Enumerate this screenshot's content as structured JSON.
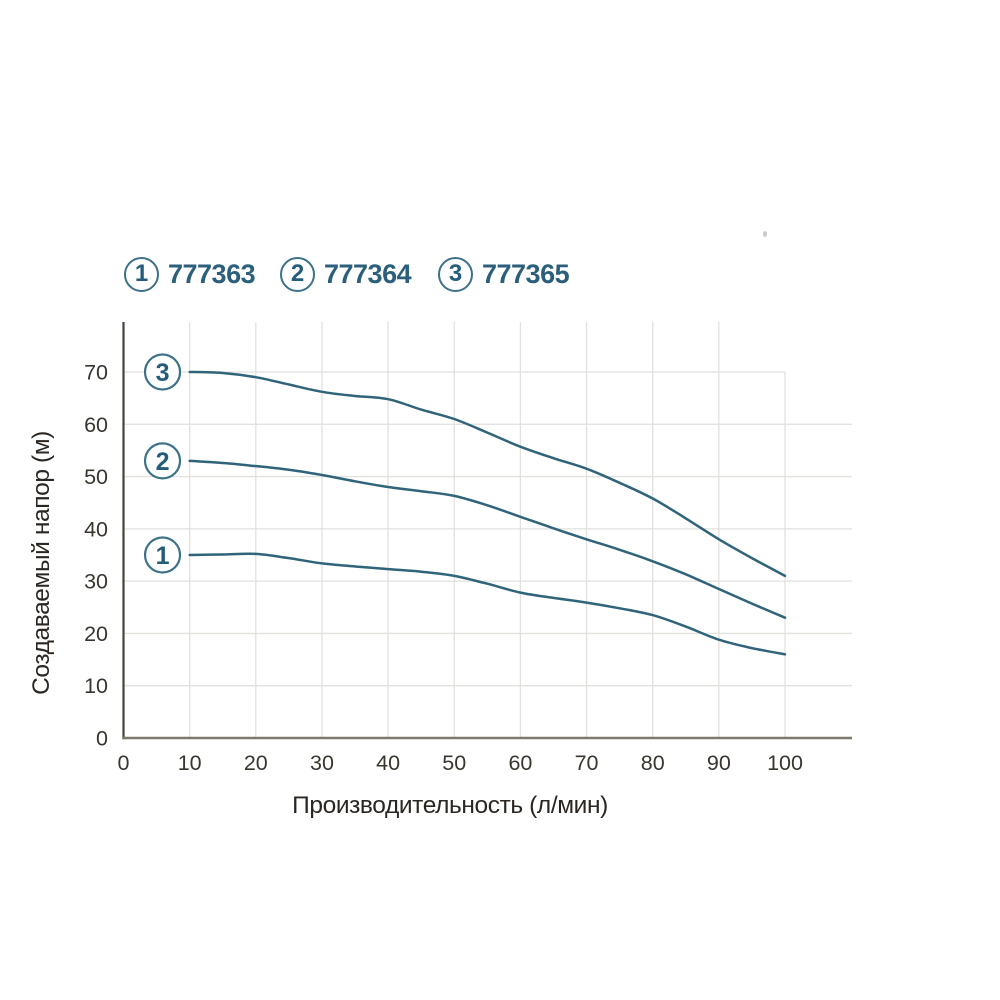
{
  "page": {
    "background": "#ffffff"
  },
  "legend": {
    "items": [
      {
        "marker": "1",
        "code": "777363"
      },
      {
        "marker": "2",
        "code": "777364"
      },
      {
        "marker": "3",
        "code": "777365"
      }
    ]
  },
  "chart_data": {
    "type": "line",
    "title": "",
    "xlabel": "Производительность (л/мин)",
    "ylabel": "Создаваемый напор (м)",
    "xlim": [
      0,
      110
    ],
    "ylim": [
      0,
      80
    ],
    "grid": true,
    "legend_position": "above-top-left",
    "x_ticks": [
      0,
      10,
      20,
      30,
      40,
      50,
      60,
      70,
      80,
      90,
      100
    ],
    "y_ticks": [
      0,
      10,
      20,
      30,
      40,
      50,
      60,
      70
    ],
    "colors": {
      "curve": "#30647a",
      "marker_ring": "#3c7189",
      "marker_text": "#245c7a",
      "legend_text": "#2b5f7b",
      "grid": "#e2e1de",
      "axis_left": "#46433c",
      "axis_bottom": "#7d796d",
      "tick_text": "#39362f",
      "axis_title_text": "#2b2621"
    },
    "series": [
      {
        "name": "1",
        "code": "777363",
        "points": [
          [
            10,
            35
          ],
          [
            15,
            35.1
          ],
          [
            20,
            35.2
          ],
          [
            25,
            34.4
          ],
          [
            30,
            33.4
          ],
          [
            35,
            32.8
          ],
          [
            40,
            32.3
          ],
          [
            45,
            31.8
          ],
          [
            50,
            31
          ],
          [
            55,
            29.5
          ],
          [
            60,
            27.8
          ],
          [
            65,
            26.8
          ],
          [
            70,
            25.9
          ],
          [
            75,
            24.8
          ],
          [
            80,
            23.5
          ],
          [
            85,
            21.3
          ],
          [
            90,
            18.8
          ],
          [
            95,
            17.2
          ],
          [
            100,
            16
          ]
        ]
      },
      {
        "name": "2",
        "code": "777364",
        "points": [
          [
            10,
            53
          ],
          [
            15,
            52.6
          ],
          [
            20,
            52
          ],
          [
            25,
            51.3
          ],
          [
            30,
            50.3
          ],
          [
            35,
            49.1
          ],
          [
            40,
            48
          ],
          [
            45,
            47.2
          ],
          [
            50,
            46.3
          ],
          [
            55,
            44.5
          ],
          [
            60,
            42.3
          ],
          [
            65,
            40.1
          ],
          [
            70,
            38
          ],
          [
            75,
            36
          ],
          [
            80,
            33.8
          ],
          [
            85,
            31.3
          ],
          [
            90,
            28.5
          ],
          [
            95,
            25.7
          ],
          [
            100,
            23
          ]
        ]
      },
      {
        "name": "3",
        "code": "777365",
        "points": [
          [
            10,
            70
          ],
          [
            15,
            69.8
          ],
          [
            20,
            69
          ],
          [
            25,
            67.6
          ],
          [
            30,
            66.2
          ],
          [
            35,
            65.4
          ],
          [
            40,
            64.8
          ],
          [
            45,
            62.8
          ],
          [
            50,
            61
          ],
          [
            55,
            58.4
          ],
          [
            60,
            55.7
          ],
          [
            65,
            53.5
          ],
          [
            70,
            51.5
          ],
          [
            75,
            48.8
          ],
          [
            80,
            45.8
          ],
          [
            85,
            42
          ],
          [
            90,
            38
          ],
          [
            95,
            34.4
          ],
          [
            100,
            31
          ]
        ]
      }
    ]
  }
}
